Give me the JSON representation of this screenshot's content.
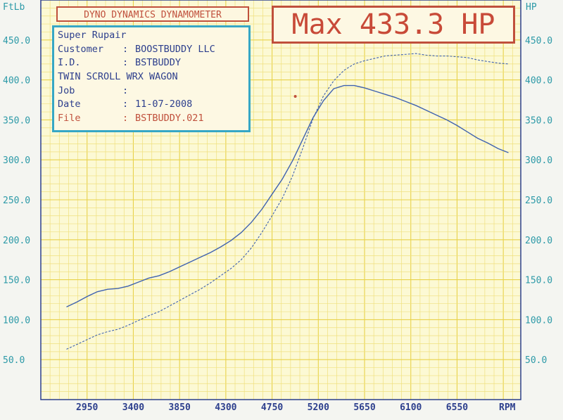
{
  "chart_data": {
    "type": "line",
    "header": "DYNO DYNAMICS DYNAMOMETER",
    "max_label": "Max 433.3 HP",
    "info": [
      {
        "key": "Super Rupair",
        "colon": "",
        "value": "",
        "highlight": false
      },
      {
        "key": "Customer",
        "colon": ":",
        "value": "BOOSTBUDDY LLC",
        "highlight": false
      },
      {
        "key": "I.D.",
        "colon": ":",
        "value": "BSTBUDDY",
        "highlight": false
      },
      {
        "key": "TWIN SCROLL WRX WAGON",
        "colon": "",
        "value": "",
        "highlight": false
      },
      {
        "key": "Job",
        "colon": ":",
        "value": "",
        "highlight": false
      },
      {
        "key": "Date",
        "colon": ":",
        "value": "11-07-2008",
        "highlight": false
      },
      {
        "key": "File",
        "colon": ":",
        "value": "BSTBUDDY.021",
        "highlight": true
      }
    ],
    "left_axis_label": "FtLb",
    "right_axis_label": "HP",
    "x_unit_label": "RPM",
    "x_ticks": [
      "2950",
      "3400",
      "3850",
      "4300",
      "4750",
      "5200",
      "5650",
      "6100",
      "6550"
    ],
    "y_ticks": [
      "50.0",
      "100.0",
      "150.0",
      "200.0",
      "250.0",
      "300.0",
      "350.0",
      "400.0",
      "450.0"
    ],
    "xlim": [
      2500,
      7170
    ],
    "ylim": [
      0,
      500
    ],
    "grid": true,
    "series": [
      {
        "style": "solid",
        "x": [
          2750,
          2850,
          2950,
          3050,
          3150,
          3250,
          3350,
          3450,
          3550,
          3650,
          3750,
          3850,
          3950,
          4050,
          4150,
          4250,
          4350,
          4450,
          4550,
          4650,
          4750,
          4850,
          4950,
          5050,
          5150,
          5250,
          5350,
          5450,
          5550,
          5650,
          5750,
          5850,
          5950,
          6050,
          6150,
          6250,
          6350,
          6450,
          6550,
          6650,
          6750,
          6850,
          6950,
          7050
        ],
        "y": [
          116,
          122,
          129,
          135,
          138,
          139,
          142,
          147,
          152,
          155,
          160,
          166,
          172,
          178,
          184,
          191,
          199,
          209,
          222,
          238,
          257,
          276,
          299,
          326,
          353,
          374,
          389,
          393,
          393,
          390,
          386,
          382,
          378,
          373,
          368,
          362,
          356,
          350,
          343,
          335,
          327,
          321,
          314,
          309
        ]
      },
      {
        "style": "dashed",
        "x": [
          2750,
          2850,
          2950,
          3050,
          3150,
          3250,
          3350,
          3450,
          3550,
          3650,
          3750,
          3850,
          3950,
          4050,
          4150,
          4250,
          4350,
          4450,
          4550,
          4650,
          4750,
          4850,
          4950,
          5050,
          5150,
          5250,
          5350,
          5450,
          5550,
          5650,
          5750,
          5850,
          5950,
          6050,
          6150,
          6250,
          6350,
          6450,
          6550,
          6650,
          6750,
          6850,
          6950,
          7050
        ],
        "y": [
          63,
          69,
          75,
          81,
          85,
          88,
          93,
          99,
          105,
          110,
          117,
          124,
          131,
          138,
          146,
          155,
          164,
          175,
          190,
          209,
          230,
          252,
          280,
          315,
          352,
          380,
          399,
          412,
          420,
          424,
          427,
          430,
          431,
          432,
          433,
          431,
          430,
          430,
          429,
          428,
          425,
          423,
          421,
          420
        ]
      }
    ]
  }
}
